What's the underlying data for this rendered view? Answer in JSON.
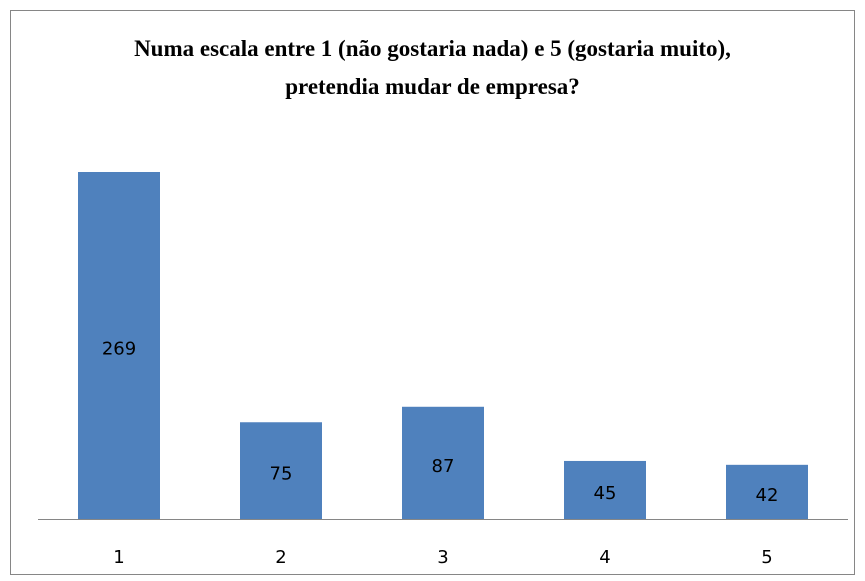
{
  "chart_data": {
    "type": "bar",
    "title": "Numa escala entre 1 (não gostaria nada) e 5 (gostaria muito), pretendia mudar de empresa?",
    "categories": [
      "1",
      "2",
      "3",
      "4",
      "5"
    ],
    "values": [
      269,
      75,
      87,
      45,
      42
    ],
    "color": "#4f81bd"
  }
}
